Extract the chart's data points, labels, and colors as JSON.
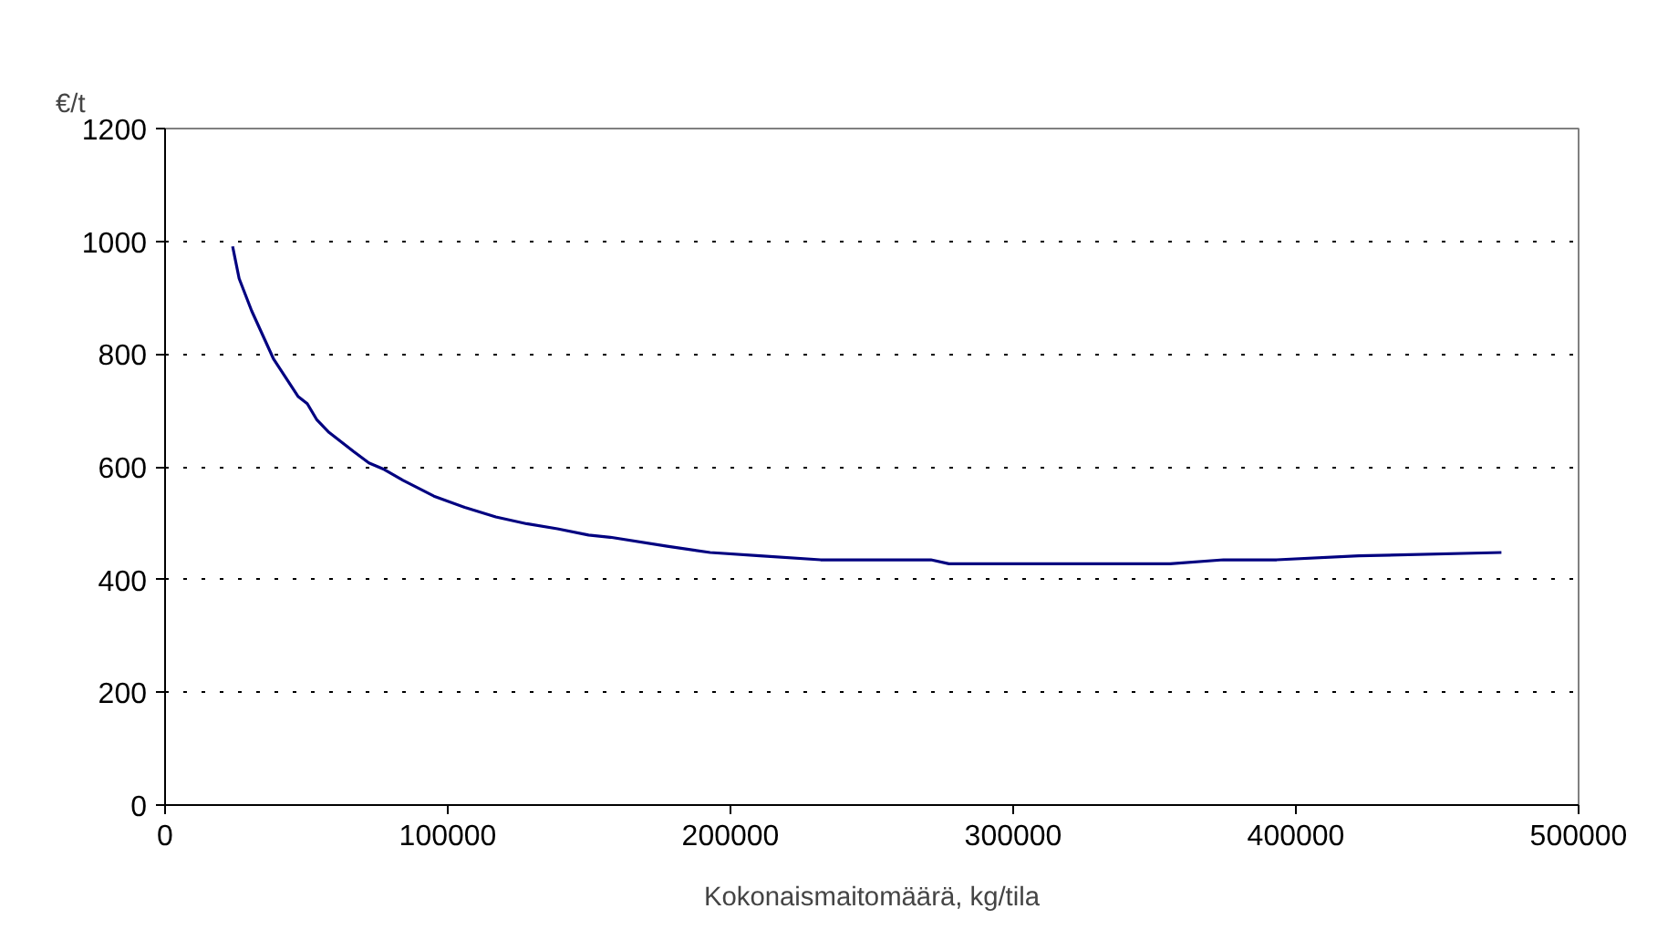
{
  "chart_data": {
    "type": "line",
    "ylabel": "€/t",
    "xlabel": "Kokonaismaitomäärä, kg/tila",
    "series": [
      {
        "color": "#000080",
        "x": [
          23900,
          26200,
          30600,
          38300,
          47000,
          50300,
          53600,
          58000,
          66700,
          72100,
          77600,
          84200,
          95100,
          106000,
          117000,
          127900,
          138800,
          149800,
          157500,
          177600,
          192800,
          210400,
          231900,
          270900,
          277300,
          355500,
          374400,
          393200,
          422300,
          472700
        ],
        "values": [
          991,
          934,
          877,
          792,
          725,
          712,
          684,
          661,
          627,
          607,
          595,
          576,
          548,
          528,
          511,
          499,
          490,
          479,
          475,
          459,
          448,
          442,
          435,
          435,
          428,
          428,
          435,
          435,
          442,
          448
        ]
      }
    ],
    "xlim": [
      0,
      500000
    ],
    "xticks": [
      0,
      100000,
      200000,
      300000,
      400000,
      500000
    ],
    "ylim": [
      0,
      1200
    ],
    "yticks": [
      0,
      200,
      400,
      600,
      800,
      1000,
      1200
    ],
    "grid": "y",
    "marker": "none",
    "line_style": "solid"
  }
}
